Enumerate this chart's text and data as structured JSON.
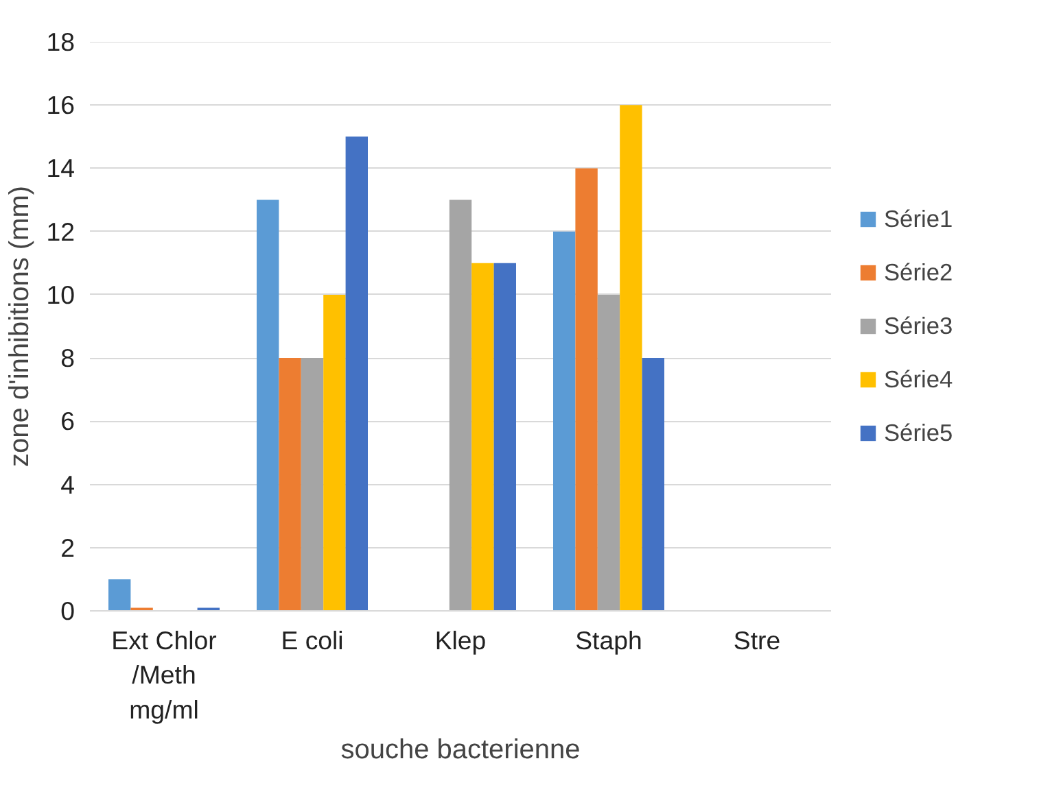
{
  "chart_data": {
    "type": "bar",
    "xlabel": "souche bacterienne",
    "ylabel": "zone d'inhibitions (mm)",
    "categories": [
      "Ext Chlor /Meth mg/ml",
      "E coli",
      "Klep",
      "Staph",
      "Stre"
    ],
    "series": [
      {
        "name": "Série1",
        "color": "#5b9bd5",
        "values": [
          1,
          13,
          0,
          12,
          0
        ]
      },
      {
        "name": "Série2",
        "color": "#ed7d31",
        "values": [
          0.1,
          8,
          0,
          14,
          0
        ]
      },
      {
        "name": "Série3",
        "color": "#a5a5a5",
        "values": [
          0,
          8,
          13,
          10,
          0
        ]
      },
      {
        "name": "Série4",
        "color": "#ffc000",
        "values": [
          0,
          10,
          11,
          16,
          0
        ]
      },
      {
        "name": "Série5",
        "color": "#4472c4",
        "values": [
          0.1,
          15,
          11,
          8,
          0
        ]
      }
    ],
    "ylim": [
      0,
      18
    ],
    "yticks": [
      0,
      2,
      4,
      6,
      8,
      10,
      12,
      14,
      16,
      18
    ],
    "grid": "y",
    "legend": "right"
  }
}
